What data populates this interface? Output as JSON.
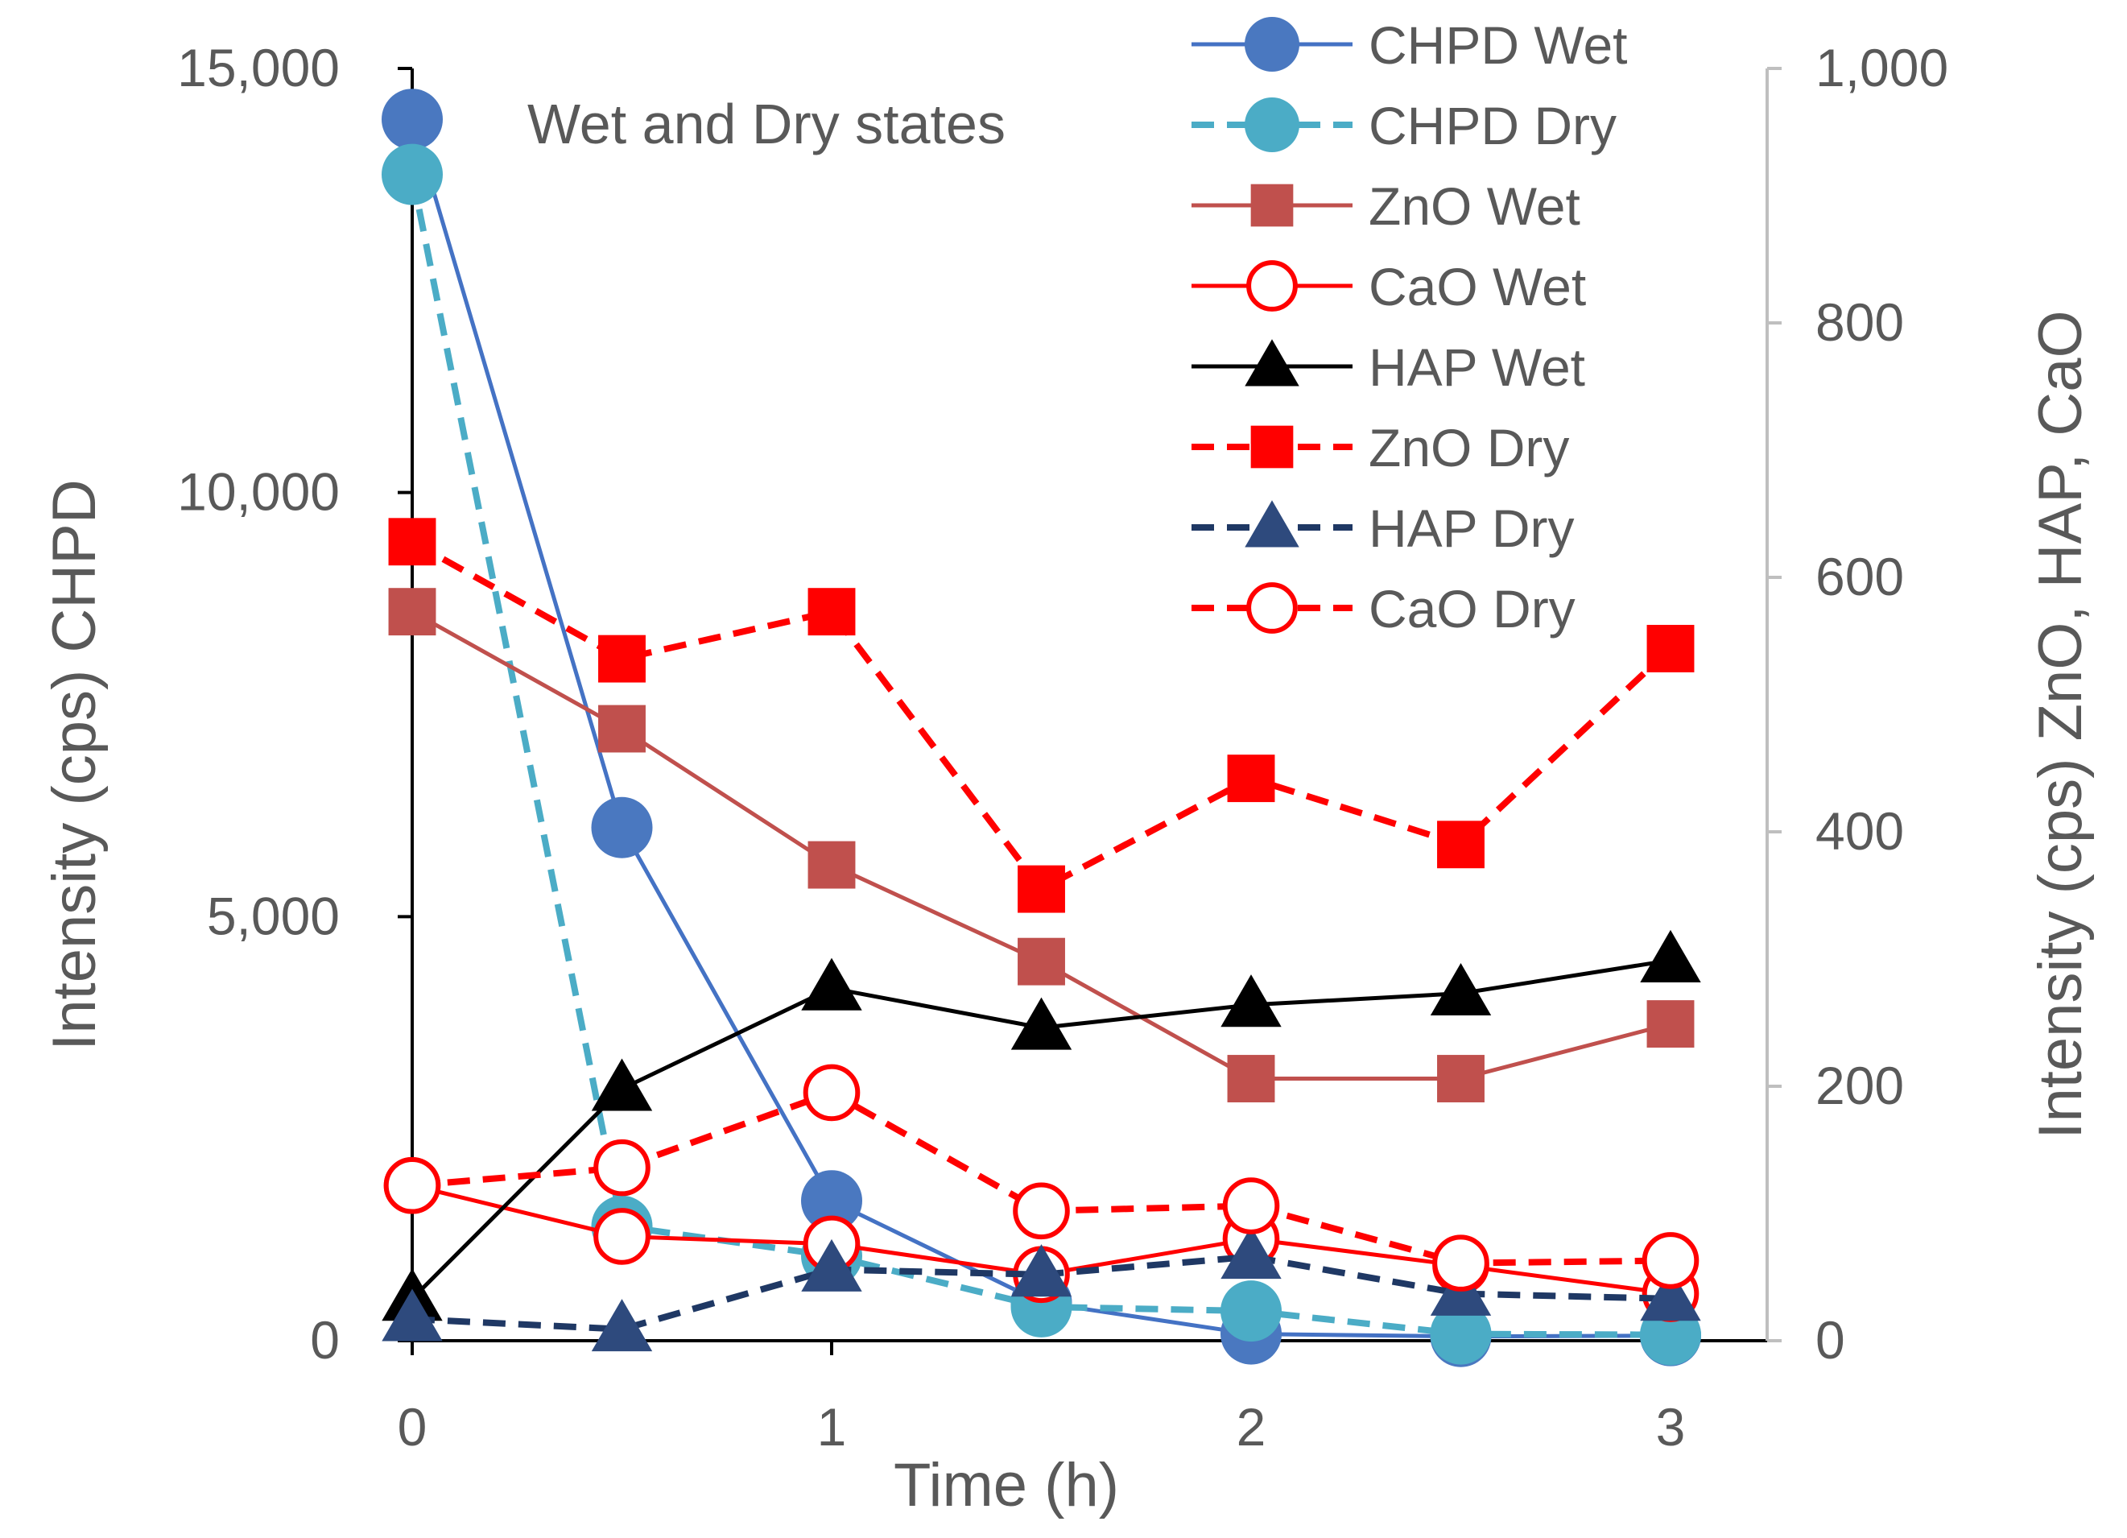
{
  "chart_data": {
    "type": "line",
    "title": "Wet and Dry states",
    "xlabel": "Time (h)",
    "ylabel_left": "Intensity  (cps) CHPD",
    "ylabel_right": "Intensity (cps) ZnO, HAP, CaO",
    "x_ticks": [
      0,
      1,
      2,
      3
    ],
    "x_tick_labels": [
      "0",
      "1",
      "2",
      "3"
    ],
    "xlim": [
      0,
      3
    ],
    "ylim_left": [
      0,
      15000
    ],
    "y_left_ticks": [
      0,
      5000,
      10000,
      15000
    ],
    "y_left_tick_labels": [
      "0",
      "5,000",
      "10,000",
      "15,000"
    ],
    "ylim_right": [
      0,
      1000
    ],
    "y_right_ticks": [
      0,
      200,
      400,
      600,
      800,
      1000
    ],
    "y_right_tick_labels": [
      "0",
      "200",
      "400",
      "600",
      "800",
      "1,000"
    ],
    "grid": false,
    "legend_position": "top-right",
    "x": [
      0,
      0.5,
      1,
      1.5,
      2,
      2.5,
      3
    ],
    "series": [
      {
        "name": "CHPD Wet",
        "axis": "left",
        "values": [
          14400,
          6050,
          1650,
          450,
          80,
          50,
          60
        ],
        "color": "#4472c4",
        "marker_fill": "#4a78c0",
        "dash": "solid",
        "marker": "circle-filled"
      },
      {
        "name": "CHPD Dry",
        "axis": "left",
        "values": [
          13750,
          1350,
          1000,
          400,
          350,
          80,
          70
        ],
        "color": "#4bacc6",
        "marker_fill": "#4bacc6",
        "dash": "dashed",
        "marker": "circle-filled"
      },
      {
        "name": "ZnO Wet",
        "axis": "right",
        "values": [
          573,
          481,
          374,
          298,
          206,
          206,
          249
        ],
        "color": "#c0504d",
        "marker_fill": "#c0504d",
        "dash": "solid",
        "marker": "square-filled"
      },
      {
        "name": "CaO Wet",
        "axis": "right",
        "values": [
          122,
          82,
          76,
          52,
          80,
          59,
          37
        ],
        "color": "#ff0000",
        "marker_fill": "none",
        "dash": "solid",
        "marker": "circle-open"
      },
      {
        "name": "HAP Wet",
        "axis": "right",
        "values": [
          33,
          198,
          277,
          246,
          264,
          273,
          299
        ],
        "color": "#000000",
        "marker_fill": "#000000",
        "dash": "solid",
        "marker": "triangle-filled"
      },
      {
        "name": "ZnO Dry",
        "axis": "right",
        "values": [
          628,
          536,
          573,
          355,
          442,
          390,
          544
        ],
        "color": "#ff0000",
        "marker_fill": "#ff0000",
        "dash": "dashed",
        "marker": "square-filled"
      },
      {
        "name": "HAP Dry",
        "axis": "right",
        "values": [
          17,
          9,
          56,
          52,
          66,
          37,
          33
        ],
        "color": "#1f3864",
        "marker_fill": "#2e4a7d",
        "dash": "dashed",
        "marker": "triangle-filled"
      },
      {
        "name": "CaO Dry",
        "axis": "right",
        "values": [
          122,
          136,
          195,
          102,
          106,
          61,
          63
        ],
        "color": "#ff0000",
        "marker_fill": "none",
        "dash": "dashed",
        "marker": "circle-open"
      }
    ]
  }
}
